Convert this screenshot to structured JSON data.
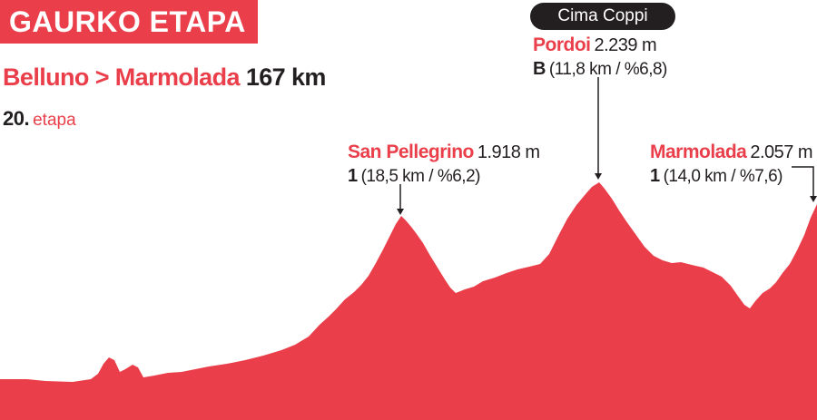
{
  "header": {
    "title": "GAURKO ETAPA"
  },
  "route": {
    "start_end": "Belluno > Marmolada",
    "distance": "167 km"
  },
  "stage": {
    "number": "20.",
    "word": "etapa"
  },
  "badge": {
    "label": "Cima Coppi"
  },
  "climbs": [
    {
      "name": "San Pellegrino",
      "altitude": "1.918 m",
      "category": "1",
      "stats": "(18,5 km / %6,2)"
    },
    {
      "name": "Pordoi",
      "altitude": "2.239 m",
      "category": "B",
      "stats": "(11,8 km / %6,8)"
    },
    {
      "name": "Marmolada",
      "altitude": "2.057 m",
      "category": "1",
      "stats": "(14,0 km / %7,6)"
    }
  ],
  "colors": {
    "profile_fill": "#ea3f4a",
    "banner": "#ea3f4a",
    "accent_text": "#ea3f4a",
    "dark": "#231f20"
  }
}
